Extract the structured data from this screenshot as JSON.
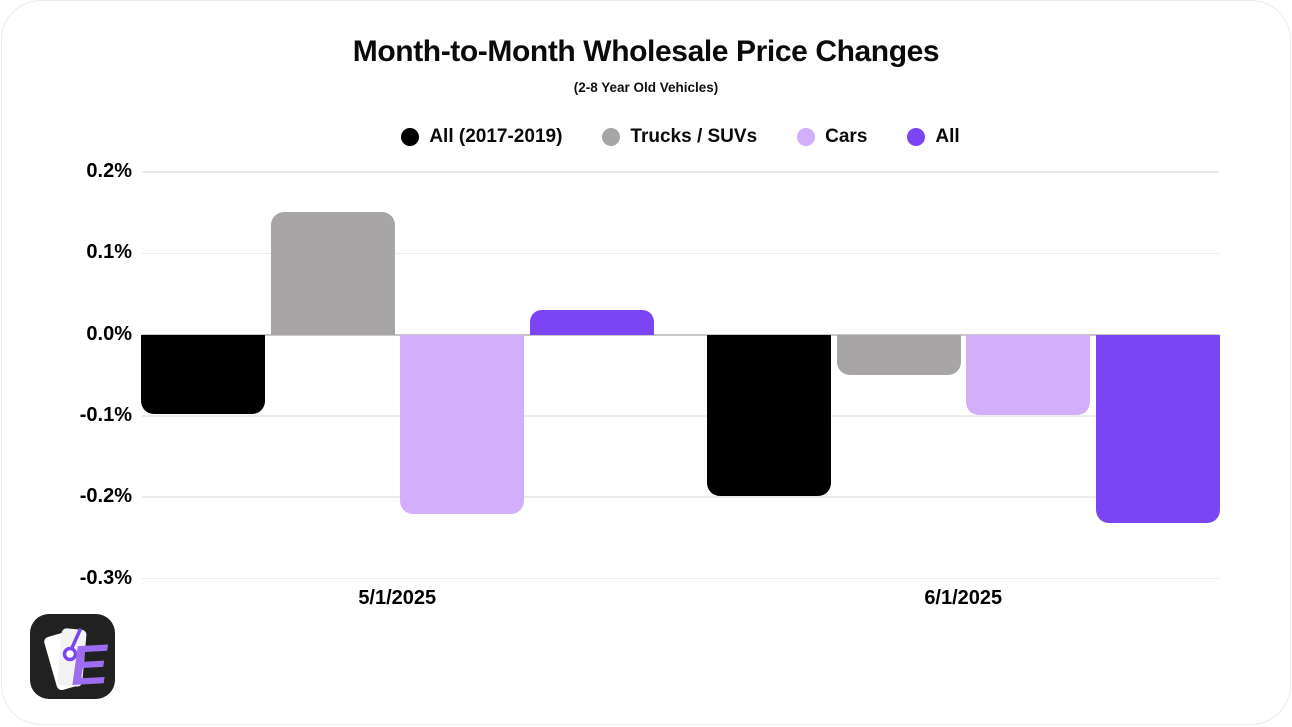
{
  "header": {
    "title": "Month-to-Month Wholesale Price Changes",
    "subtitle": "(2-8 Year Old Vehicles)"
  },
  "chart_data": {
    "type": "bar",
    "title": "Month-to-Month Wholesale Price Changes",
    "subtitle": "(2-8 Year Old Vehicles)",
    "categories": [
      "5/1/2025",
      "6/1/2025"
    ],
    "series": [
      {
        "name": "All (2017-2019)",
        "color": "#000000",
        "values": [
          -0.098,
          -0.199
        ]
      },
      {
        "name": "Trucks / SUVs",
        "color": "#a8a5a6",
        "values": [
          0.151,
          -0.05
        ]
      },
      {
        "name": "Cars",
        "color": "#d3aefa",
        "values": [
          -0.221,
          -0.099
        ]
      },
      {
        "name": "All",
        "color": "#7c45f3",
        "values": [
          0.03,
          -0.232
        ]
      }
    ],
    "xlabel": "",
    "ylabel": "",
    "ylim": [
      -0.3,
      0.2
    ],
    "y_ticks": [
      0.2,
      0.1,
      0,
      -0.1,
      -0.2,
      -0.3
    ],
    "y_tick_labels": [
      "0.2%",
      "0.1%",
      "0.0%",
      "-0.1%",
      "-0.2%",
      "-0.3%"
    ],
    "grid": true,
    "zero_line": true,
    "legend_position": "top-center",
    "bar_corner": "rounded-outer-end"
  },
  "colors": {
    "background": "#ffffff",
    "gridline": "#ececec",
    "zero_line": "#c7c7c7",
    "text": "#000000"
  },
  "logo": {
    "letter": "E",
    "background": "#212121",
    "letter_color": "#9d6cf0",
    "accent_color": "#7c45f3",
    "tag_color": "#ffffff"
  }
}
